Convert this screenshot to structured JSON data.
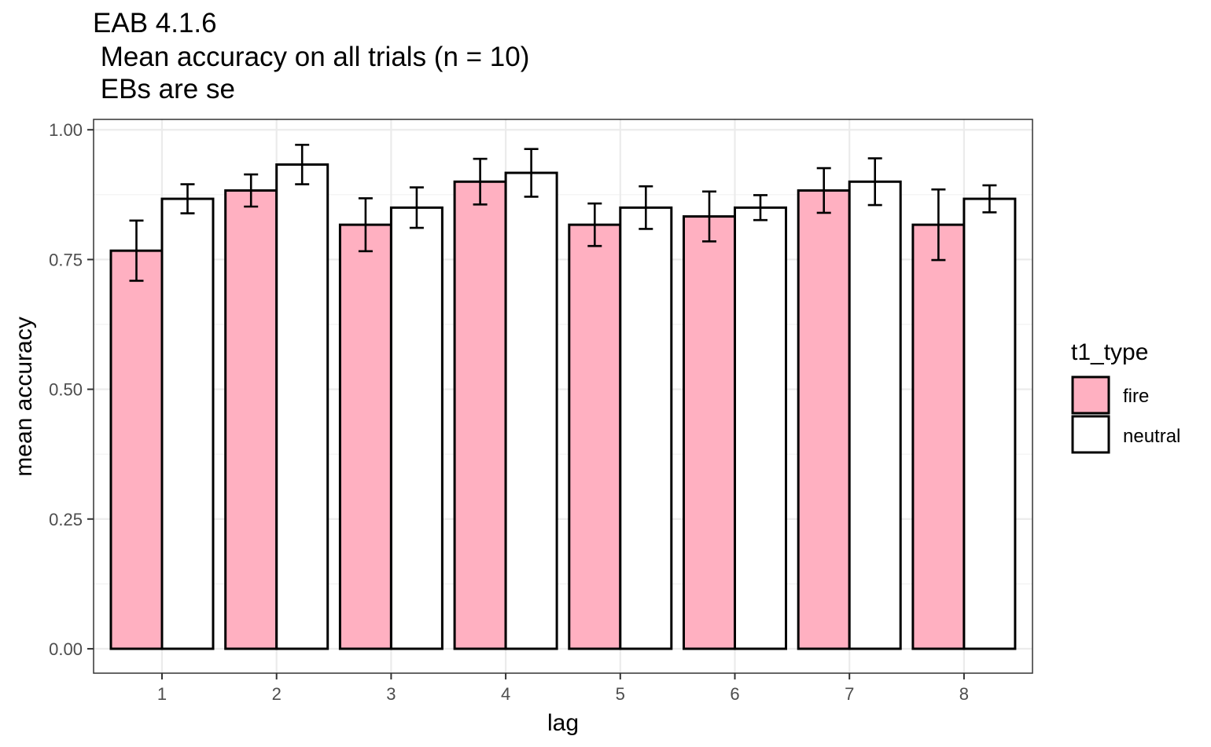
{
  "chart_data": {
    "type": "bar",
    "title_lines": [
      "EAB 4.1.6",
      " Mean accuracy on all trials (n = 10)",
      " EBs are se"
    ],
    "xlabel": "lag",
    "ylabel": "mean accuracy",
    "categories": [
      "1",
      "2",
      "3",
      "4",
      "5",
      "6",
      "7",
      "8"
    ],
    "ylim": [
      -0.047,
      1.02
    ],
    "yticks": [
      0.0,
      0.25,
      0.5,
      0.75,
      1.0
    ],
    "ytick_labels": [
      "0.00",
      "0.25",
      "0.50",
      "0.75",
      "1.00"
    ],
    "grid": true,
    "legend": {
      "title": "t1_type",
      "placement": "right"
    },
    "series": [
      {
        "name": "fire",
        "color": "#FFB0C1",
        "values": [
          0.767,
          0.883,
          0.817,
          0.9,
          0.817,
          0.833,
          0.883,
          0.817
        ],
        "err_low": [
          0.709,
          0.852,
          0.766,
          0.856,
          0.776,
          0.785,
          0.84,
          0.749
        ],
        "err_high": [
          0.825,
          0.914,
          0.868,
          0.944,
          0.858,
          0.881,
          0.926,
          0.885
        ]
      },
      {
        "name": "neutral",
        "color": "#FFFFFF",
        "values": [
          0.867,
          0.933,
          0.85,
          0.917,
          0.85,
          0.85,
          0.9,
          0.867
        ],
        "err_low": [
          0.839,
          0.895,
          0.811,
          0.871,
          0.809,
          0.826,
          0.855,
          0.841
        ],
        "err_high": [
          0.895,
          0.971,
          0.889,
          0.963,
          0.891,
          0.874,
          0.945,
          0.893
        ]
      }
    ]
  }
}
